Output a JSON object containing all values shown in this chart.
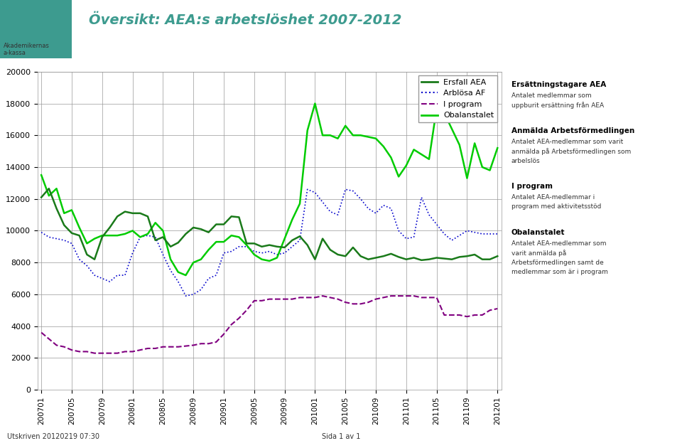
{
  "title": "Översikt: AEA:s arbetslöshet 2007-2012",
  "title_color": "#3d9b8f",
  "background_color": "#ffffff",
  "x_labels": [
    "200701",
    "200705",
    "200709",
    "200801",
    "200805",
    "200809",
    "200901",
    "200905",
    "200909",
    "201001",
    "201005",
    "201009",
    "201101",
    "201105",
    "201109",
    "201201"
  ],
  "ersfall_aea": [
    12100,
    12650,
    11400,
    10350,
    9850,
    9700,
    8500,
    8200,
    9600,
    10200,
    10900,
    11200,
    11100,
    11100,
    10900,
    9400,
    9600,
    9000,
    9250,
    9800,
    10200,
    10100,
    9900,
    10400,
    10400,
    10900,
    10850,
    9200,
    9200,
    9000,
    9100,
    9000,
    8950,
    9400,
    9650,
    9100,
    8200,
    9500,
    8800,
    8500,
    8400,
    8950,
    8400,
    8200,
    8300,
    8400,
    8550,
    8350,
    8200,
    8300,
    8150,
    8200,
    8300,
    8250,
    8200,
    8350,
    8400,
    8500,
    8200,
    8200,
    8400
  ],
  "arblosa_af": [
    9900,
    9600,
    9500,
    9400,
    9200,
    8200,
    7800,
    7200,
    7000,
    6800,
    7200,
    7200,
    8600,
    9600,
    9700,
    9600,
    8500,
    7500,
    6800,
    5900,
    6000,
    6300,
    7000,
    7200,
    8600,
    8700,
    9000,
    9000,
    8700,
    8600,
    8700,
    8500,
    8600,
    9000,
    9400,
    12600,
    12400,
    11800,
    11200,
    11000,
    12600,
    12500,
    12000,
    11400,
    11100,
    11600,
    11400,
    10000,
    9500,
    9600,
    12100,
    11000,
    10400,
    9800,
    9400,
    9700,
    10000,
    9900,
    9800,
    9800,
    9800
  ],
  "i_program": [
    3600,
    3200,
    2800,
    2700,
    2500,
    2400,
    2400,
    2300,
    2300,
    2300,
    2300,
    2400,
    2400,
    2500,
    2600,
    2600,
    2700,
    2700,
    2700,
    2750,
    2800,
    2900,
    2900,
    3000,
    3500,
    4100,
    4500,
    5000,
    5600,
    5600,
    5700,
    5700,
    5700,
    5700,
    5800,
    5800,
    5800,
    5900,
    5800,
    5700,
    5500,
    5400,
    5400,
    5500,
    5700,
    5800,
    5900,
    5900,
    5900,
    5900,
    5800,
    5800,
    5800,
    4700,
    4700,
    4700,
    4600,
    4700,
    4700,
    5000,
    5100
  ],
  "obalanstalet": [
    13500,
    12200,
    12650,
    11100,
    11300,
    10200,
    9200,
    9500,
    9700,
    9700,
    9700,
    9800,
    10000,
    9600,
    9800,
    10500,
    10000,
    8200,
    7400,
    7200,
    8000,
    8200,
    8800,
    9300,
    9300,
    9700,
    9600,
    9100,
    8500,
    8200,
    8100,
    8300,
    9500,
    10700,
    11700,
    16300,
    18000,
    16000,
    16000,
    15800,
    16600,
    16000,
    16000,
    15900,
    15800,
    15300,
    14600,
    13400,
    14100,
    15100,
    14800,
    14500,
    17700,
    17400,
    16400,
    15400,
    13300,
    15500,
    14000,
    13800,
    15200
  ],
  "n_points": 61,
  "yticks": [
    0,
    2000,
    4000,
    6000,
    8000,
    10000,
    12000,
    14000,
    16000,
    18000,
    20000
  ],
  "ylim": [
    0,
    20000
  ],
  "grid_color": "#999999",
  "ersfall_color": "#1a7a1a",
  "arblosa_color": "#0000cc",
  "i_program_color": "#800080",
  "obalanstalet_color": "#00cc00",
  "footer_left": "Utskriven 20120219 07:30",
  "footer_center": "Sida 1 av 1",
  "right_header1": "Ersättningstagare AEA",
  "right_text1": "Antalet medlemmar som\nuppburit ersättning från AEA",
  "right_header2": "Anmälda Arbetsförmedlingen",
  "right_text2": "Antalet AEA-medlemmar som varit\nanmälda på Arbetsförmedlingen som\narbelslös",
  "right_header3": "I program",
  "right_text3": "Antalet AEA-medlemmar i\nprogram med aktivitetsstöd",
  "right_header4": "Obalanstalet",
  "right_text4": "Antalet AEA-medlemmar som\nvarit anmälda på\nArbetsförmedlingen samt de\nmedlemmar som är i program"
}
